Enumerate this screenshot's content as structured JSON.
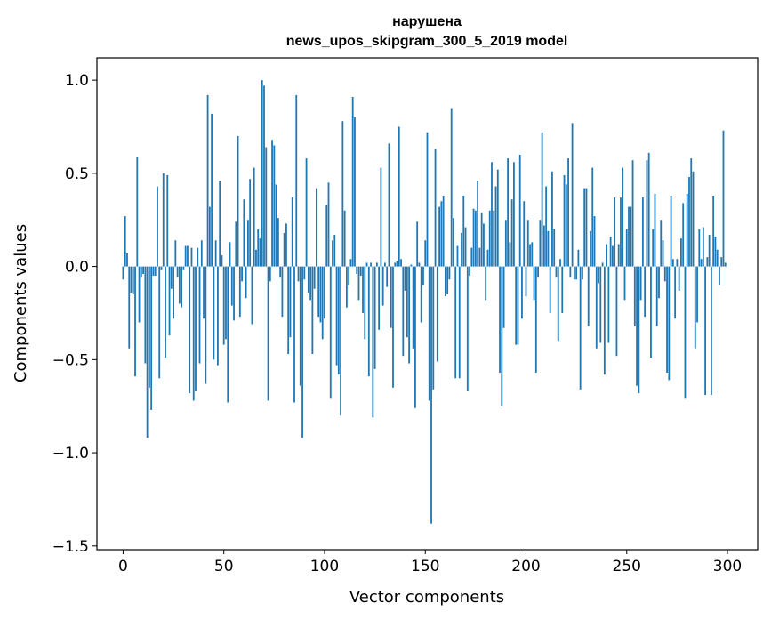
{
  "chart_data": {
    "type": "bar",
    "title_lines": [
      "нарушена",
      "news_upos_skipgram_300_5_2019 model"
    ],
    "xlabel": "Vector components",
    "ylabel": "Components values",
    "xlim": [
      -13,
      315
    ],
    "ylim": [
      -1.52,
      1.12
    ],
    "xticks": [
      0,
      50,
      100,
      150,
      200,
      250,
      300
    ],
    "xtick_labels": [
      "0",
      "50",
      "100",
      "150",
      "200",
      "250",
      "300"
    ],
    "yticks": [
      -1.5,
      -1.0,
      -0.5,
      0.0,
      0.5,
      1.0
    ],
    "ytick_labels": [
      "−1.5",
      "−1.0",
      "−0.5",
      "0.0",
      "0.5",
      "1.0"
    ],
    "grid": false,
    "bar_color": "#1f77b4",
    "x": [
      0,
      1,
      2,
      3,
      4,
      5,
      6,
      7,
      8,
      9,
      10,
      11,
      12,
      13,
      14,
      15,
      16,
      17,
      18,
      19,
      20,
      21,
      22,
      23,
      24,
      25,
      26,
      27,
      28,
      29,
      30,
      31,
      32,
      33,
      34,
      35,
      36,
      37,
      38,
      39,
      40,
      41,
      42,
      43,
      44,
      45,
      46,
      47,
      48,
      49,
      50,
      51,
      52,
      53,
      54,
      55,
      56,
      57,
      58,
      59,
      60,
      61,
      62,
      63,
      64,
      65,
      66,
      67,
      68,
      69,
      70,
      71,
      72,
      73,
      74,
      75,
      76,
      77,
      78,
      79,
      80,
      81,
      82,
      83,
      84,
      85,
      86,
      87,
      88,
      89,
      90,
      91,
      92,
      93,
      94,
      95,
      96,
      97,
      98,
      99,
      100,
      101,
      102,
      103,
      104,
      105,
      106,
      107,
      108,
      109,
      110,
      111,
      112,
      113,
      114,
      115,
      116,
      117,
      118,
      119,
      120,
      121,
      122,
      123,
      124,
      125,
      126,
      127,
      128,
      129,
      130,
      131,
      132,
      133,
      134,
      135,
      136,
      137,
      138,
      139,
      140,
      141,
      142,
      143,
      144,
      145,
      146,
      147,
      148,
      149,
      150,
      151,
      152,
      153,
      154,
      155,
      156,
      157,
      158,
      159,
      160,
      161,
      162,
      163,
      164,
      165,
      166,
      167,
      168,
      169,
      170,
      171,
      172,
      173,
      174,
      175,
      176,
      177,
      178,
      179,
      180,
      181,
      182,
      183,
      184,
      185,
      186,
      187,
      188,
      189,
      190,
      191,
      192,
      193,
      194,
      195,
      196,
      197,
      198,
      199,
      200,
      201,
      202,
      203,
      204,
      205,
      206,
      207,
      208,
      209,
      210,
      211,
      212,
      213,
      214,
      215,
      216,
      217,
      218,
      219,
      220,
      221,
      222,
      223,
      224,
      225,
      226,
      227,
      228,
      229,
      230,
      231,
      232,
      233,
      234,
      235,
      236,
      237,
      238,
      239,
      240,
      241,
      242,
      243,
      244,
      245,
      246,
      247,
      248,
      249,
      250,
      251,
      252,
      253,
      254,
      255,
      256,
      257,
      258,
      259,
      260,
      261,
      262,
      263,
      264,
      265,
      266,
      267,
      268,
      269,
      270,
      271,
      272,
      273,
      274,
      275,
      276,
      277,
      278,
      279,
      280,
      281,
      282,
      283,
      284,
      285,
      286,
      287,
      288,
      289,
      290,
      291,
      292,
      293,
      294,
      295,
      296,
      297,
      298,
      299
    ],
    "values": [
      -0.07,
      0.27,
      0.07,
      -0.44,
      -0.14,
      -0.15,
      -0.59,
      0.59,
      -0.3,
      -0.06,
      -0.04,
      -0.52,
      -0.92,
      -0.65,
      -0.77,
      -0.05,
      -0.05,
      0.43,
      -0.6,
      -0.02,
      0.5,
      -0.49,
      0.49,
      -0.37,
      -0.12,
      -0.28,
      0.14,
      -0.06,
      -0.2,
      -0.22,
      -0.02,
      0.11,
      0.11,
      -0.68,
      0.1,
      -0.72,
      -0.67,
      0.1,
      -0.52,
      0.14,
      -0.28,
      -0.63,
      0.92,
      0.32,
      0.82,
      -0.5,
      0.14,
      -0.53,
      0.46,
      0.06,
      -0.42,
      -0.39,
      -0.73,
      0.13,
      -0.21,
      -0.29,
      0.24,
      0.7,
      -0.27,
      -0.08,
      0.36,
      -0.17,
      0.25,
      0.47,
      -0.31,
      0.53,
      0.09,
      0.2,
      0.15,
      1.0,
      0.97,
      0.64,
      -0.72,
      -0.08,
      0.68,
      0.65,
      0.44,
      0.26,
      -0.06,
      -0.27,
      0.18,
      0.23,
      -0.47,
      -0.38,
      0.37,
      -0.73,
      0.92,
      -0.08,
      -0.64,
      -0.92,
      -0.07,
      0.58,
      -0.14,
      -0.18,
      -0.47,
      -0.12,
      0.42,
      -0.27,
      -0.3,
      -0.39,
      -0.28,
      0.33,
      0.45,
      -0.71,
      0.14,
      0.17,
      -0.53,
      -0.58,
      -0.8,
      0.78,
      0.3,
      -0.22,
      -0.1,
      0.04,
      0.91,
      0.8,
      -0.04,
      -0.18,
      -0.05,
      -0.25,
      -0.39,
      0.02,
      -0.59,
      0.02,
      -0.81,
      -0.55,
      0.02,
      -0.34,
      0.53,
      -0.21,
      0.02,
      -0.11,
      0.66,
      -0.33,
      -0.65,
      0.02,
      0.03,
      0.75,
      0.04,
      -0.48,
      -0.13,
      -0.38,
      -0.52,
      0.01,
      -0.44,
      -0.76,
      0.24,
      0.02,
      -0.3,
      -0.1,
      0.14,
      0.72,
      -0.72,
      -1.38,
      -0.66,
      0.63,
      -0.51,
      0.32,
      0.35,
      0.38,
      -0.16,
      -0.15,
      -0.07,
      0.85,
      0.26,
      -0.6,
      0.11,
      -0.6,
      0.18,
      0.38,
      0.21,
      -0.67,
      -0.05,
      0.1,
      0.31,
      0.3,
      0.46,
      0.1,
      0.29,
      0.23,
      -0.18,
      0.09,
      0.3,
      0.56,
      0.3,
      0.43,
      0.52,
      -0.57,
      -0.75,
      -0.33,
      0.25,
      0.58,
      0.13,
      0.36,
      0.56,
      -0.42,
      -0.42,
      0.6,
      -0.28,
      0.35,
      -0.16,
      0.25,
      0.12,
      0.13,
      -0.18,
      -0.57,
      -0.06,
      0.25,
      0.72,
      0.22,
      0.43,
      0.19,
      -0.25,
      0.51,
      0.2,
      -0.06,
      -0.4,
      0.04,
      -0.25,
      0.49,
      0.44,
      0.58,
      -0.06,
      0.77,
      -0.07,
      -0.07,
      0.09,
      -0.66,
      -0.07,
      0.42,
      0.42,
      -0.32,
      0.19,
      0.53,
      0.27,
      -0.44,
      -0.09,
      -0.41,
      0.02,
      -0.58,
      0.12,
      -0.41,
      0.16,
      0.11,
      0.37,
      -0.48,
      0.12,
      0.37,
      0.53,
      -0.18,
      0.2,
      0.32,
      0.32,
      0.57,
      -0.32,
      -0.64,
      -0.68,
      -0.18,
      0.37,
      -0.27,
      0.57,
      0.61,
      -0.49,
      0.2,
      0.39,
      -0.32,
      -0.17,
      0.25,
      0.14,
      -0.08,
      -0.57,
      -0.61,
      0.38,
      0.04,
      -0.28,
      0.04,
      -0.13,
      0.15,
      0.34,
      -0.71,
      0.39,
      0.48,
      0.58,
      0.51,
      -0.44,
      -0.3,
      0.2,
      0.04,
      0.21,
      -0.69,
      0.05,
      0.17,
      -0.69,
      0.38,
      0.16,
      0.09,
      -0.1,
      0.05,
      0.73,
      0.02
    ]
  }
}
